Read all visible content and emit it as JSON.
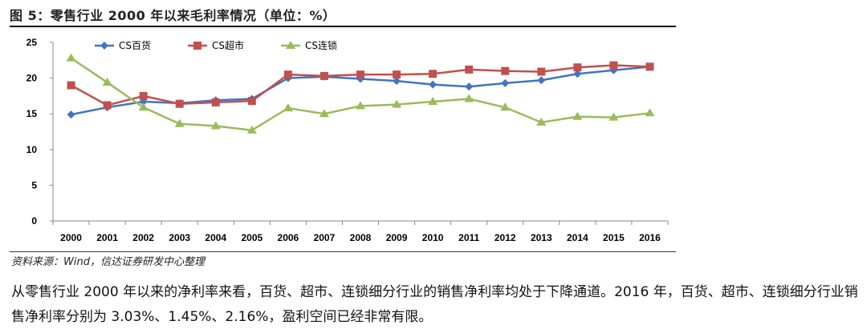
{
  "figure": {
    "title": "图 5：零售行业 2000 年以来毛利率情况（单位：%）",
    "source": "资料来源：Wind，信达证券研发中心整理"
  },
  "paragraph": "从零售行业 2000 年以来的净利率来看，百货、超市、连锁细分行业的销售净利率均处于下降通道。2016 年，百货、超市、连锁细分行业销售净利率分别为 3.03%、1.45%、2.16%，盈利空间已经非常有限。",
  "chart_data": {
    "type": "line",
    "title": "",
    "xlabel": "",
    "ylabel": "",
    "x": [
      "2000",
      "2001",
      "2002",
      "2003",
      "2004",
      "2005",
      "2006",
      "2007",
      "2008",
      "2009",
      "2010",
      "2011",
      "2012",
      "2013",
      "2014",
      "2015",
      "2016"
    ],
    "ylim": [
      0,
      25
    ],
    "yticks": [
      0,
      5,
      10,
      15,
      20,
      25
    ],
    "grid": false,
    "legend_position": "top-left",
    "series": [
      {
        "name": "CS百货",
        "color": "#4472C4",
        "marker": "diamond",
        "values": [
          14.9,
          15.9,
          16.7,
          16.5,
          16.9,
          17.1,
          20.0,
          20.2,
          19.9,
          19.6,
          19.1,
          18.8,
          19.3,
          19.7,
          20.6,
          21.1,
          21.6
        ]
      },
      {
        "name": "CS超市",
        "color": "#C0504D",
        "marker": "square",
        "values": [
          19.0,
          16.2,
          17.5,
          16.4,
          16.6,
          16.8,
          20.5,
          20.3,
          20.5,
          20.5,
          20.6,
          21.2,
          21.0,
          20.9,
          21.5,
          21.8,
          21.6
        ]
      },
      {
        "name": "CS连锁",
        "color": "#9BBB59",
        "marker": "triangle",
        "values": [
          22.8,
          19.4,
          15.9,
          13.6,
          13.3,
          12.7,
          15.8,
          15.0,
          16.1,
          16.3,
          16.7,
          17.1,
          15.9,
          13.8,
          14.6,
          14.5,
          15.1
        ]
      }
    ]
  }
}
